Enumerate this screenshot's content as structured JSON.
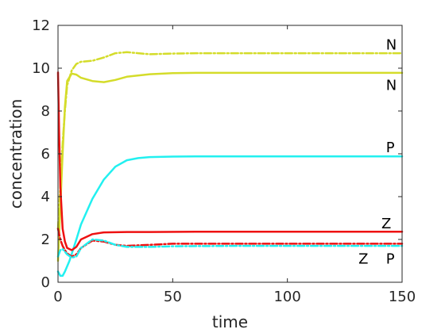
{
  "chart_data": {
    "type": "line",
    "title": "",
    "xlabel": "time",
    "ylabel": "concentration",
    "xlim": [
      0,
      150
    ],
    "ylim": [
      0,
      12
    ],
    "x_ticks": [
      "0",
      "50",
      "100",
      "150"
    ],
    "y_ticks": [
      "0",
      "2",
      "4",
      "6",
      "8",
      "10",
      "12"
    ],
    "grid": false,
    "legend": "none",
    "colors": {
      "yellow": "#d4dc2a",
      "cyan": "#22f0f0",
      "red": "#ee1111",
      "axis": "#262626"
    },
    "series": [
      {
        "name": "N",
        "color": "yellow",
        "style": "dashdot",
        "x": [
          0,
          1,
          2,
          3,
          4,
          6,
          8,
          10,
          15,
          20,
          25,
          30,
          35,
          40,
          50,
          60,
          80,
          100,
          120,
          150
        ],
        "y": [
          2.5,
          4.5,
          6.5,
          8.0,
          9.2,
          9.9,
          10.2,
          10.3,
          10.35,
          10.5,
          10.7,
          10.75,
          10.7,
          10.65,
          10.68,
          10.7,
          10.7,
          10.7,
          10.7,
          10.7
        ]
      },
      {
        "name": "N",
        "color": "yellow",
        "style": "solid",
        "x": [
          0,
          1,
          2,
          3,
          4,
          6,
          8,
          10,
          15,
          20,
          25,
          30,
          40,
          50,
          60,
          80,
          100,
          120,
          150
        ],
        "y": [
          1.0,
          3.5,
          6.0,
          8.2,
          9.4,
          9.75,
          9.7,
          9.55,
          9.4,
          9.35,
          9.45,
          9.6,
          9.72,
          9.77,
          9.78,
          9.78,
          9.78,
          9.78,
          9.78
        ]
      },
      {
        "name": "P",
        "color": "cyan",
        "style": "solid",
        "x": [
          0,
          1,
          2,
          3,
          5,
          8,
          10,
          15,
          20,
          25,
          30,
          35,
          40,
          50,
          60,
          80,
          100,
          150
        ],
        "y": [
          0.5,
          0.3,
          0.3,
          0.5,
          1.0,
          2.0,
          2.7,
          3.9,
          4.8,
          5.4,
          5.7,
          5.8,
          5.85,
          5.87,
          5.88,
          5.88,
          5.88,
          5.88
        ]
      },
      {
        "name": "Z",
        "color": "red",
        "style": "solid",
        "x": [
          0,
          0.5,
          1,
          2,
          3,
          4,
          6,
          8,
          10,
          15,
          20,
          30,
          40,
          60,
          100,
          150
        ],
        "y": [
          9.8,
          7.0,
          4.5,
          2.5,
          1.9,
          1.6,
          1.5,
          1.65,
          2.0,
          2.25,
          2.33,
          2.35,
          2.35,
          2.36,
          2.36,
          2.36
        ]
      },
      {
        "name": "Z",
        "color": "red",
        "style": "dashdot",
        "x": [
          0,
          1,
          2,
          3,
          4,
          6,
          8,
          10,
          15,
          20,
          25,
          30,
          40,
          50,
          80,
          100,
          150
        ],
        "y": [
          2.5,
          2.0,
          1.7,
          1.5,
          1.35,
          1.2,
          1.3,
          1.6,
          1.95,
          1.9,
          1.75,
          1.7,
          1.75,
          1.8,
          1.8,
          1.8,
          1.8
        ]
      },
      {
        "name": "P",
        "color": "cyan",
        "style": "dashdot",
        "x": [
          0,
          1,
          2,
          4,
          6,
          8,
          10,
          15,
          20,
          25,
          30,
          40,
          50,
          80,
          100,
          150
        ],
        "y": [
          1.2,
          1.5,
          1.55,
          1.3,
          1.15,
          1.2,
          1.6,
          2.0,
          1.95,
          1.75,
          1.65,
          1.65,
          1.68,
          1.7,
          1.7,
          1.7
        ]
      }
    ],
    "annotations": [
      {
        "text": "N",
        "x": 143,
        "y": 11.1
      },
      {
        "text": "N",
        "x": 143,
        "y": 9.2
      },
      {
        "text": "P",
        "x": 143,
        "y": 6.3
      },
      {
        "text": "Z",
        "x": 141,
        "y": 2.75
      },
      {
        "text": "Z",
        "x": 131,
        "y": 1.1
      },
      {
        "text": "P",
        "x": 143,
        "y": 1.1
      }
    ]
  }
}
